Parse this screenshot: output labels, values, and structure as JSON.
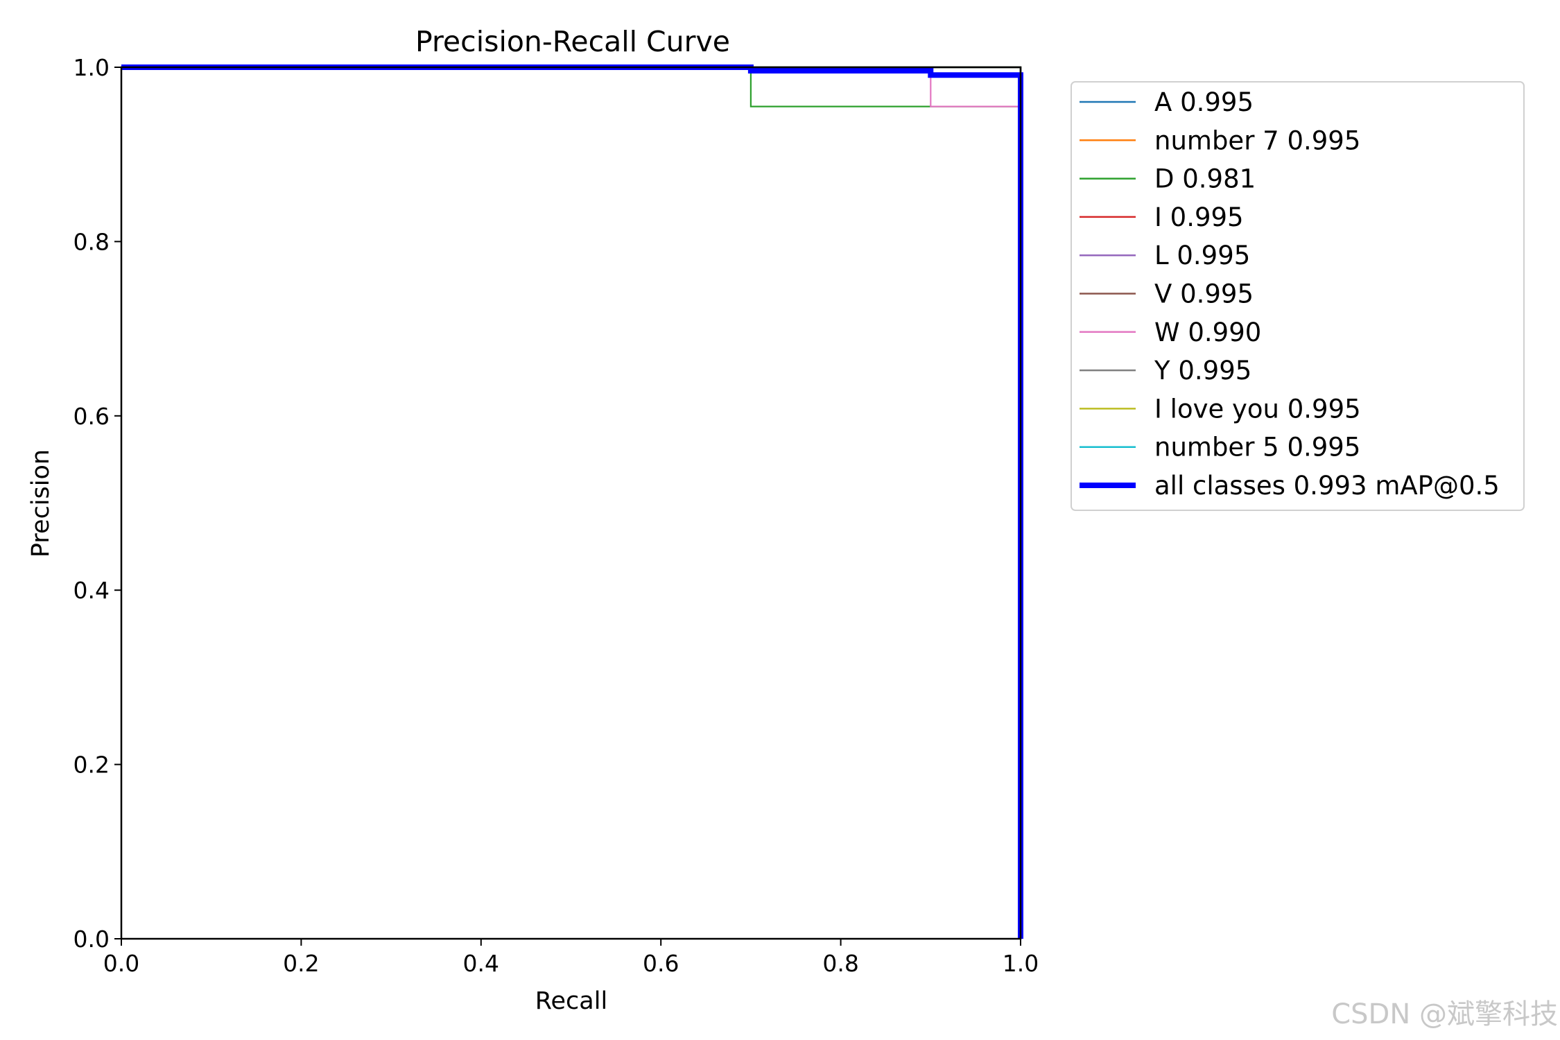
{
  "watermark": "CSDN @斌擎科技",
  "chart_data": {
    "type": "line",
    "title": "Precision-Recall Curve",
    "xlabel": "Recall",
    "ylabel": "Precision",
    "xlim": [
      0,
      1
    ],
    "ylim": [
      0,
      1
    ],
    "xticks": [
      "0.0",
      "0.2",
      "0.4",
      "0.6",
      "0.8",
      "1.0"
    ],
    "yticks": [
      "0.0",
      "0.2",
      "0.4",
      "0.6",
      "0.8",
      "1.0"
    ],
    "grid": false,
    "legend_position": "outside-right",
    "series": [
      {
        "name": "A 0.995",
        "color": "#1f77b4",
        "x": [
          0,
          1.0,
          1.0
        ],
        "y": [
          1.0,
          1.0,
          0.0
        ]
      },
      {
        "name": "number 7 0.995",
        "color": "#ff7f0e",
        "x": [
          0,
          1.0,
          1.0
        ],
        "y": [
          1.0,
          1.0,
          0.0
        ]
      },
      {
        "name": "D 0.981",
        "color": "#2ca02c",
        "x": [
          0,
          0.7,
          0.7,
          1.0,
          1.0
        ],
        "y": [
          1.0,
          1.0,
          0.955,
          0.955,
          0.0
        ]
      },
      {
        "name": "I 0.995",
        "color": "#d62728",
        "x": [
          0,
          1.0,
          1.0
        ],
        "y": [
          1.0,
          1.0,
          0.0
        ]
      },
      {
        "name": "L 0.995",
        "color": "#9467bd",
        "x": [
          0,
          1.0,
          1.0
        ],
        "y": [
          1.0,
          1.0,
          0.0
        ]
      },
      {
        "name": "V 0.995",
        "color": "#8c564b",
        "x": [
          0,
          1.0,
          1.0
        ],
        "y": [
          1.0,
          1.0,
          0.0
        ]
      },
      {
        "name": "W 0.990",
        "color": "#e377c2",
        "x": [
          0,
          0.9,
          0.9,
          1.0,
          1.0
        ],
        "y": [
          1.0,
          1.0,
          0.955,
          0.955,
          0.0
        ]
      },
      {
        "name": "Y 0.995",
        "color": "#7f7f7f",
        "x": [
          0,
          1.0,
          1.0
        ],
        "y": [
          1.0,
          1.0,
          0.0
        ]
      },
      {
        "name": "I love you 0.995",
        "color": "#bcbd22",
        "x": [
          0,
          1.0,
          1.0
        ],
        "y": [
          1.0,
          1.0,
          0.0
        ]
      },
      {
        "name": "number 5 0.995",
        "color": "#17becf",
        "x": [
          0,
          1.0,
          1.0
        ],
        "y": [
          1.0,
          1.0,
          0.0
        ]
      },
      {
        "name": "all classes 0.993 mAP@0.5",
        "color": "#0000ff",
        "thick": true,
        "x": [
          0,
          0.7,
          0.7,
          0.9,
          0.9,
          1.0,
          1.0
        ],
        "y": [
          1.0,
          1.0,
          0.996,
          0.996,
          0.991,
          0.991,
          0.0
        ]
      }
    ]
  }
}
